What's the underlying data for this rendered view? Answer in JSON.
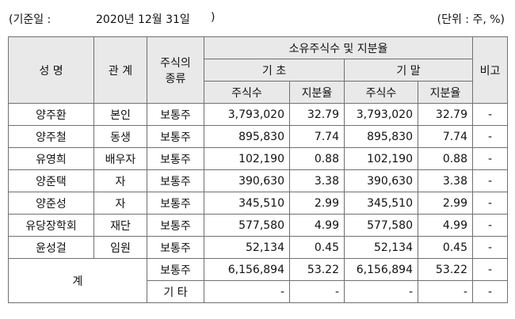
{
  "caption": {
    "left": "(기준일 :",
    "date": "2020년 12월 31일",
    "paren": ")",
    "right": "(단위 : 주, %)"
  },
  "header": {
    "name": "성 명",
    "relation": "관 계",
    "stock_type_line1": "주식의",
    "stock_type_line2": "종류",
    "holdings": "소유주식수 및 지분율",
    "beginning": "기 초",
    "ending": "기 말",
    "shares": "주식수",
    "ratio": "지분율",
    "note": "비고"
  },
  "rows": [
    {
      "name": "양주환",
      "relation": "본인",
      "type": "보통주",
      "shares_begin": "3,793,020",
      "ratio_begin": "32.79",
      "shares_end": "3,793,020",
      "ratio_end": "32.79",
      "note": "-"
    },
    {
      "name": "양주철",
      "relation": "동생",
      "type": "보통주",
      "shares_begin": "895,830",
      "ratio_begin": "7.74",
      "shares_end": "895,830",
      "ratio_end": "7.74",
      "note": "-"
    },
    {
      "name": "유영희",
      "relation": "배우자",
      "type": "보통주",
      "shares_begin": "102,190",
      "ratio_begin": "0.88",
      "shares_end": "102,190",
      "ratio_end": "0.88",
      "note": "-"
    },
    {
      "name": "양준택",
      "relation": "자",
      "type": "보통주",
      "shares_begin": "390,630",
      "ratio_begin": "3.38",
      "shares_end": "390,630",
      "ratio_end": "3.38",
      "note": "-"
    },
    {
      "name": "양준성",
      "relation": "자",
      "type": "보통주",
      "shares_begin": "345,510",
      "ratio_begin": "2.99",
      "shares_end": "345,510",
      "ratio_end": "2.99",
      "note": "-"
    },
    {
      "name": "유당장학회",
      "relation": "재단",
      "type": "보통주",
      "shares_begin": "577,580",
      "ratio_begin": "4.99",
      "shares_end": "577,580",
      "ratio_end": "4.99",
      "note": "-"
    },
    {
      "name": "윤성걸",
      "relation": "임원",
      "type": "보통주",
      "shares_begin": "52,134",
      "ratio_begin": "0.45",
      "shares_end": "52,134",
      "ratio_end": "0.45",
      "note": "-"
    }
  ],
  "total": {
    "label": "계",
    "common": {
      "type": "보통주",
      "shares_begin": "6,156,894",
      "ratio_begin": "53.22",
      "shares_end": "6,156,894",
      "ratio_end": "53.22",
      "note": "-"
    },
    "other": {
      "type": "기 타",
      "shares_begin": "-",
      "ratio_begin": "-",
      "shares_end": "-",
      "ratio_end": "-",
      "note": "-"
    }
  }
}
